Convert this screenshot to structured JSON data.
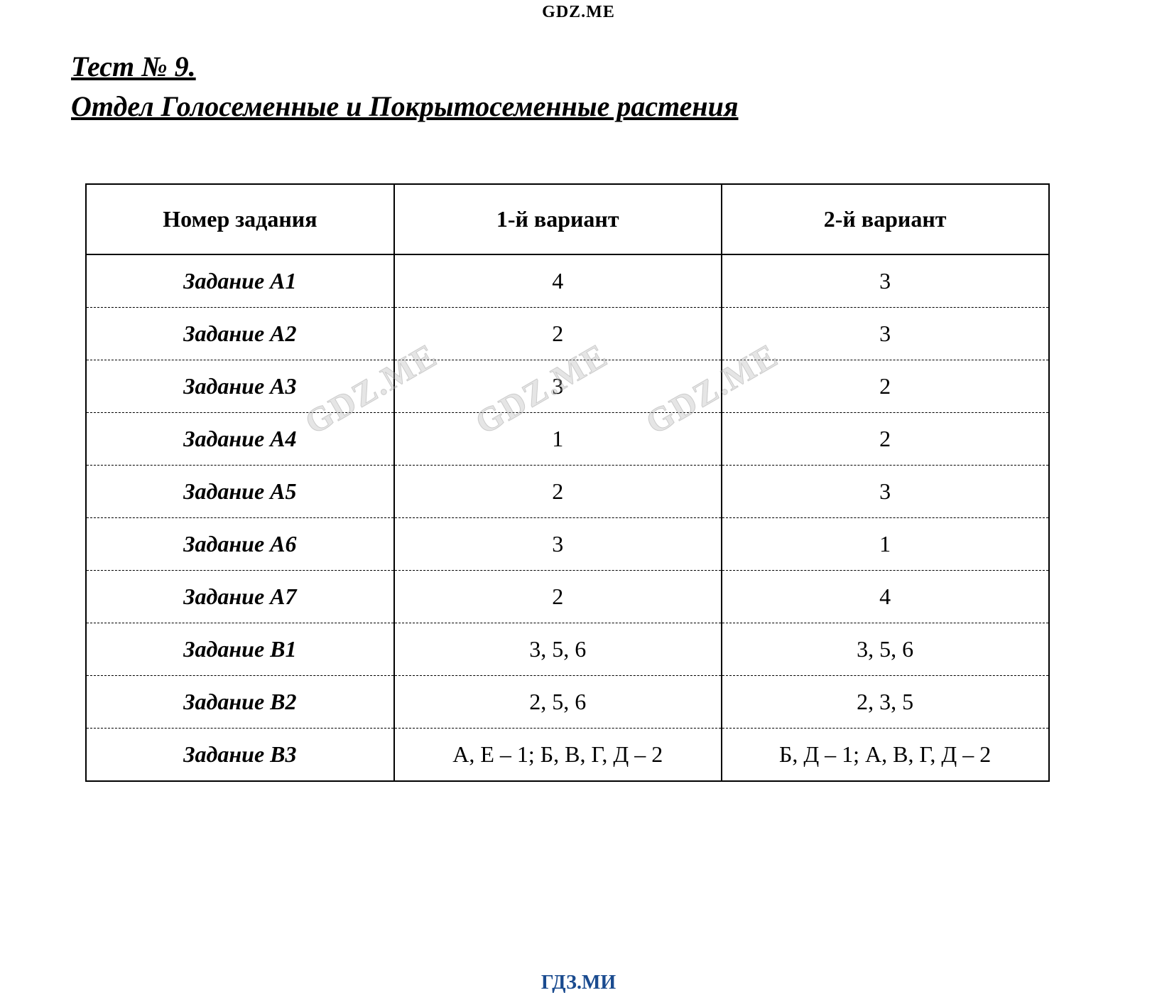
{
  "watermarks": {
    "top": "GDZ.ME",
    "bottom": "ГДЗ.МИ",
    "diag": "GDZ.ME"
  },
  "heading": {
    "line1": "Тест № 9.",
    "line2": "Отдел Голосеменные и Покрытосеменные растения"
  },
  "table": {
    "columns": [
      "Номер задания",
      "1-й вариант",
      "2-й вариант"
    ],
    "rows": [
      {
        "label": "Задание A1",
        "v1": "4",
        "v2": "3"
      },
      {
        "label": "Задание A2",
        "v1": "2",
        "v2": "3"
      },
      {
        "label": "Задание A3",
        "v1": "3",
        "v2": "2"
      },
      {
        "label": "Задание A4",
        "v1": "1",
        "v2": "2"
      },
      {
        "label": "Задание A5",
        "v1": "2",
        "v2": "3"
      },
      {
        "label": "Задание A6",
        "v1": "3",
        "v2": "1"
      },
      {
        "label": "Задание A7",
        "v1": "2",
        "v2": "4"
      },
      {
        "label": "Задание B1",
        "v1": "3, 5, 6",
        "v2": "3, 5, 6"
      },
      {
        "label": "Задание B2",
        "v1": "2, 5, 6",
        "v2": "2, 3, 5"
      },
      {
        "label": "Задание B3",
        "v1": "А, Е – 1; Б, В, Г, Д – 2",
        "v2": "Б, Д – 1; А, В, Г, Д – 2"
      }
    ]
  },
  "styling": {
    "background_color": "#ffffff",
    "text_color": "#000000",
    "bottom_watermark_color": "#1a4b8f",
    "heading_fontsize": 40,
    "cell_fontsize": 32,
    "watermark_top_fontsize": 24,
    "watermark_bottom_fontsize": 28,
    "border_color": "#000000",
    "row_border_style": "dashed",
    "outer_border_style": "solid"
  }
}
